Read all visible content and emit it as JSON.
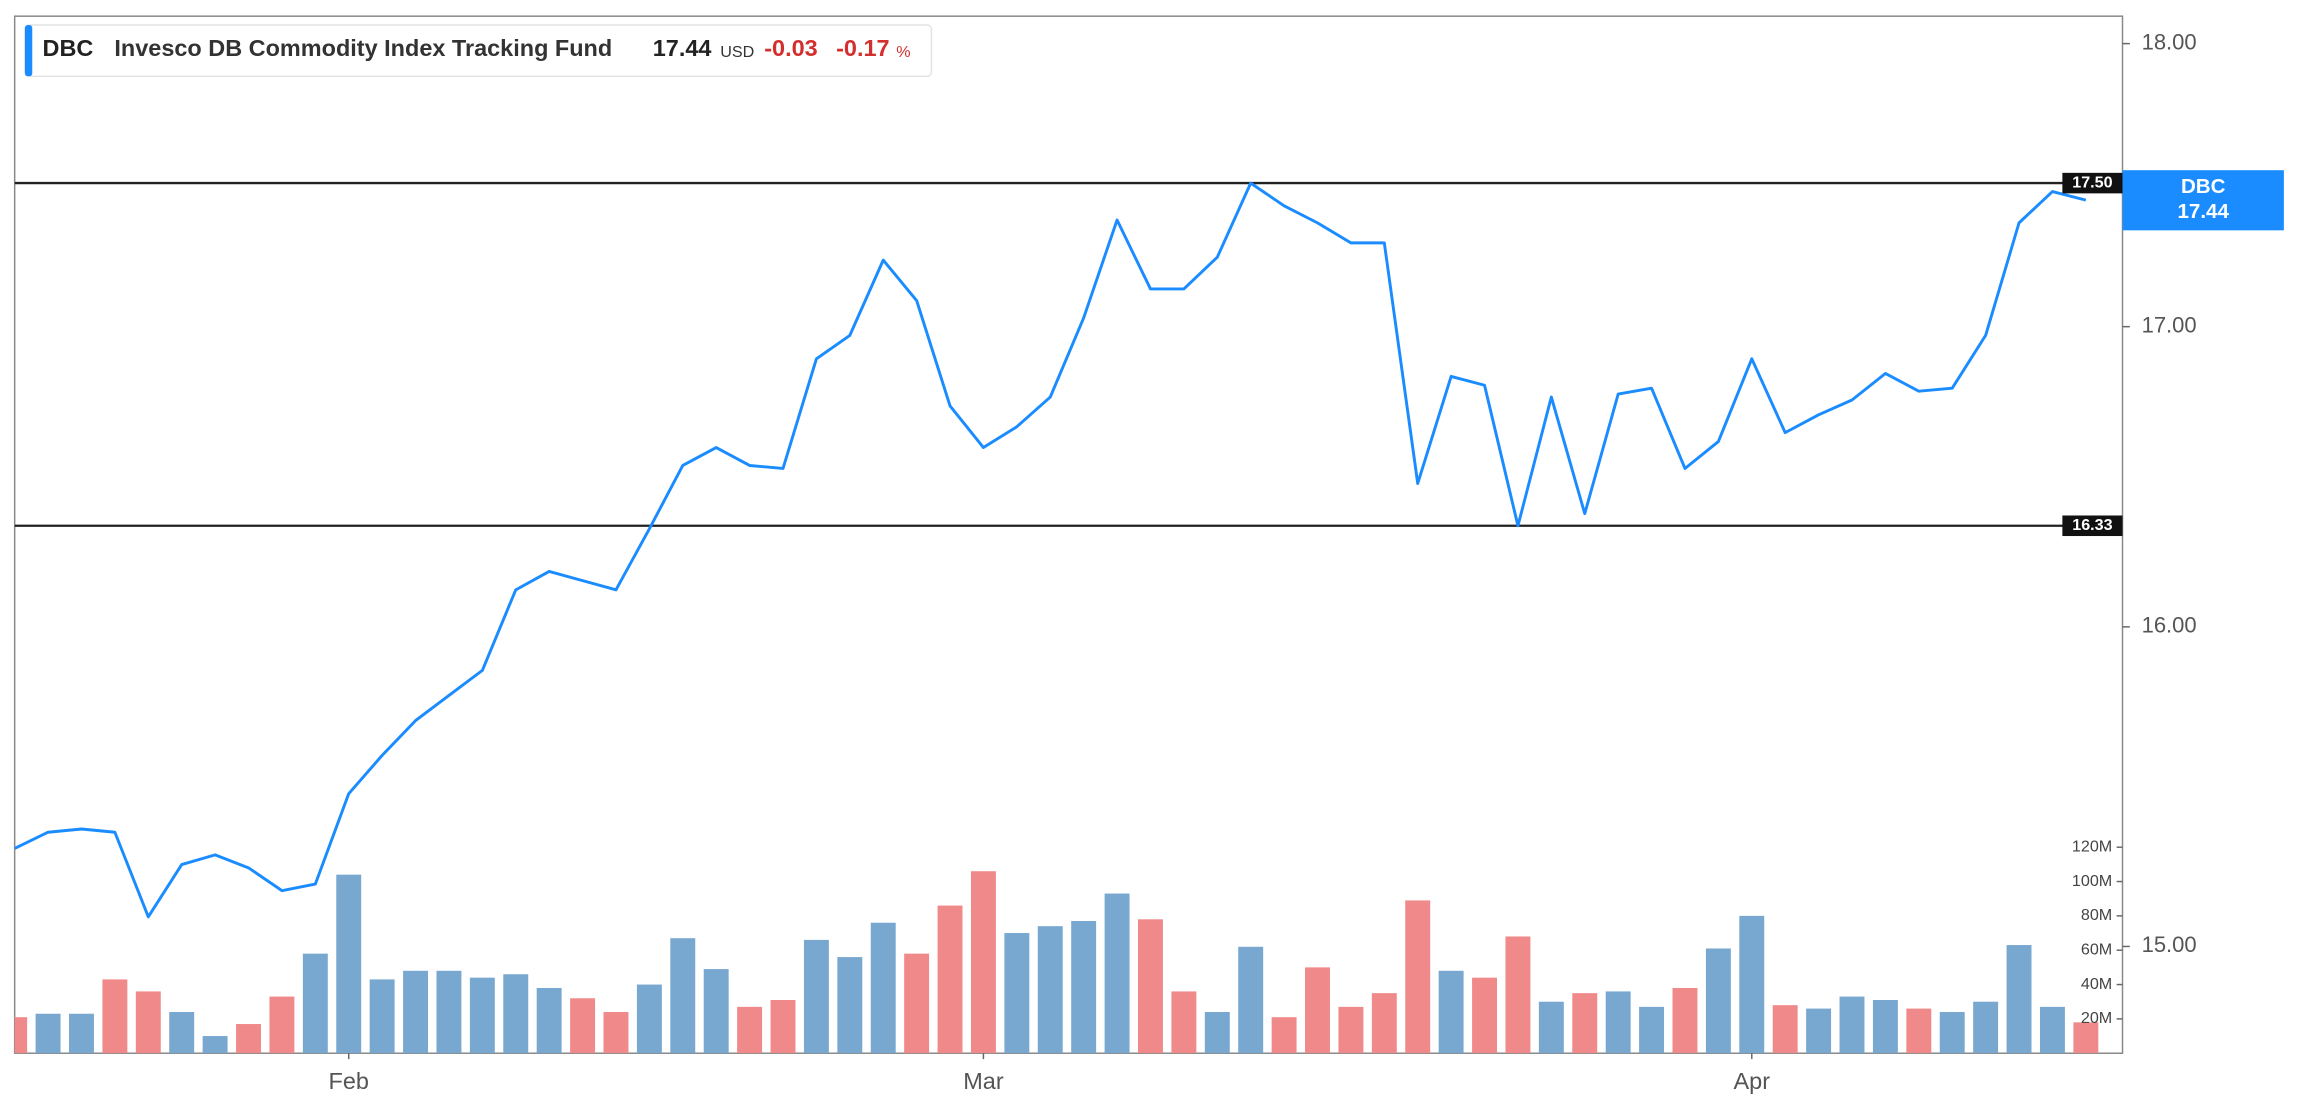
{
  "chart_data": {
    "type": "line",
    "header": {
      "ticker": "DBC",
      "name": "Invesco DB Commodity Index Tracking Fund",
      "price": 17.44,
      "currency": "USD",
      "change": -0.03,
      "change_percent": -0.17,
      "percent_unit": "%"
    },
    "categories": [
      null,
      null,
      null,
      null,
      null,
      null,
      null,
      null,
      null,
      null,
      "Feb",
      null,
      null,
      null,
      null,
      null,
      null,
      null,
      null,
      null,
      null,
      null,
      null,
      null,
      null,
      null,
      null,
      null,
      null,
      "Mar",
      null,
      null,
      null,
      null,
      null,
      null,
      null,
      null,
      null,
      null,
      null,
      null,
      null,
      null,
      null,
      null,
      null,
      null,
      null,
      null,
      null,
      null,
      "Apr",
      null,
      null,
      null,
      null,
      null,
      null,
      null,
      null,
      null,
      null
    ],
    "series": [
      {
        "name": "DBC",
        "color": "#1a8cff",
        "values": [
          15.3,
          15.35,
          15.36,
          15.35,
          15.09,
          15.25,
          15.28,
          15.24,
          15.17,
          15.19,
          15.47,
          15.59,
          15.7,
          15.78,
          15.86,
          16.12,
          16.18,
          16.15,
          16.12,
          16.32,
          16.53,
          16.59,
          16.53,
          16.52,
          16.89,
          16.97,
          17.23,
          17.09,
          16.73,
          16.59,
          16.66,
          16.76,
          17.03,
          17.37,
          17.13,
          17.13,
          17.24,
          17.5,
          17.42,
          17.36,
          17.29,
          17.29,
          16.47,
          16.83,
          16.8,
          16.33,
          16.76,
          16.37,
          16.77,
          16.79,
          16.52,
          16.61,
          16.89,
          16.64,
          16.7,
          16.75,
          16.84,
          16.78,
          16.79,
          16.97,
          17.36,
          17.47,
          17.44
        ]
      }
    ],
    "volume": {
      "values": [
        21000000,
        23000000,
        23000000,
        43000000,
        36000000,
        24000000,
        10000000,
        17000000,
        33000000,
        58000000,
        104000000,
        43000000,
        48000000,
        48000000,
        44000000,
        46000000,
        38000000,
        32000000,
        24000000,
        40000000,
        67000000,
        49000000,
        27000000,
        31000000,
        66000000,
        56000000,
        76000000,
        58000000,
        86000000,
        106000000,
        70000000,
        74000000,
        77000000,
        93000000,
        78000000,
        36000000,
        24000000,
        62000000,
        21000000,
        50000000,
        27000000,
        35000000,
        89000000,
        48000000,
        44000000,
        68000000,
        30000000,
        35000000,
        36000000,
        27000000,
        38000000,
        61000000,
        80000000,
        28000000,
        26000000,
        33000000,
        31000000,
        26000000,
        24000000,
        30000000,
        63000000,
        27000000,
        18000000
      ],
      "colors": [
        "#f08a8a",
        "#78a8d0",
        "#78a8d0",
        "#f08a8a",
        "#f08a8a",
        "#78a8d0",
        "#78a8d0",
        "#f08a8a",
        "#f08a8a",
        "#78a8d0",
        "#78a8d0",
        "#78a8d0",
        "#78a8d0",
        "#78a8d0",
        "#78a8d0",
        "#78a8d0",
        "#78a8d0",
        "#f08a8a",
        "#f08a8a",
        "#78a8d0",
        "#78a8d0",
        "#78a8d0",
        "#f08a8a",
        "#f08a8a",
        "#78a8d0",
        "#78a8d0",
        "#78a8d0",
        "#f08a8a",
        "#f08a8a",
        "#f08a8a",
        "#78a8d0",
        "#78a8d0",
        "#78a8d0",
        "#78a8d0",
        "#f08a8a",
        "#f08a8a",
        "#78a8d0",
        "#78a8d0",
        "#f08a8a",
        "#f08a8a",
        "#f08a8a",
        "#f08a8a",
        "#f08a8a",
        "#78a8d0",
        "#f08a8a",
        "#f08a8a",
        "#78a8d0",
        "#f08a8a",
        "#78a8d0",
        "#78a8d0",
        "#f08a8a",
        "#78a8d0",
        "#78a8d0",
        "#f08a8a",
        "#78a8d0",
        "#78a8d0",
        "#78a8d0",
        "#f08a8a",
        "#78a8d0",
        "#78a8d0",
        "#78a8d0",
        "#78a8d0",
        "#f08a8a"
      ]
    },
    "log_scale": true,
    "ylim": [
      14.68,
      18.1
    ],
    "yticks": [
      {
        "value": 15,
        "label": "15.00"
      },
      {
        "value": 16,
        "label": "16.00"
      },
      {
        "value": 17,
        "label": "17.00"
      },
      {
        "value": 18,
        "label": "18.00"
      }
    ],
    "y2lim": [
      0,
      604000000
    ],
    "y2ticks": [
      {
        "value": 20000000,
        "label": "20M"
      },
      {
        "value": 40000000,
        "label": "40M"
      },
      {
        "value": 60000000,
        "label": "60M"
      },
      {
        "value": 80000000,
        "label": "80M"
      },
      {
        "value": 100000000,
        "label": "100M"
      },
      {
        "value": 120000000,
        "label": "120M"
      }
    ],
    "reference_lines": [
      {
        "value": 17.5,
        "label": "17.50"
      },
      {
        "value": 16.33,
        "label": "16.33"
      }
    ]
  }
}
